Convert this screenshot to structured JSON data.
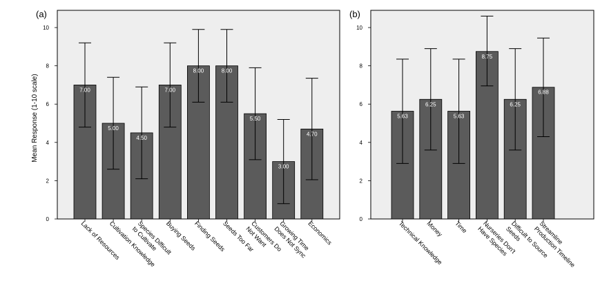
{
  "chart_data": [
    {
      "panel": "(a)",
      "type": "bar",
      "ylabel": "Mean Response (1-10 scale)",
      "ylim": [
        0,
        10.9
      ],
      "yticks": [
        0,
        2,
        4,
        6,
        8,
        10
      ],
      "grid": false,
      "bars": [
        {
          "label": "Lack of Resources",
          "value": 7.0,
          "label_text": "7.00",
          "err_low": 4.8,
          "err_high": 9.2
        },
        {
          "label": "Cultivation Knowledge",
          "value": 5.0,
          "label_text": "5.00",
          "err_low": 2.6,
          "err_high": 7.4
        },
        {
          "label": "Species Difficult\nto Cultivate",
          "value": 4.5,
          "label_text": "4.50",
          "err_low": 2.1,
          "err_high": 6.9
        },
        {
          "label": "Buying Seeds",
          "value": 7.0,
          "label_text": "7.00",
          "err_low": 4.8,
          "err_high": 9.2
        },
        {
          "label": "Finding Seeds",
          "value": 8.0,
          "label_text": "8.00",
          "err_low": 6.1,
          "err_high": 9.9
        },
        {
          "label": "Seeds Too Far",
          "value": 8.0,
          "label_text": "8.00",
          "err_low": 6.1,
          "err_high": 9.9
        },
        {
          "label": "Customers Do\nNot Want",
          "value": 5.5,
          "label_text": "5.50",
          "err_low": 3.1,
          "err_high": 7.9
        },
        {
          "label": "Growing Time\nDoes Not Sync",
          "value": 3.0,
          "label_text": "3.00",
          "err_low": 0.8,
          "err_high": 5.2
        },
        {
          "label": "Economics",
          "value": 4.7,
          "label_text": "4.70",
          "err_low": 2.05,
          "err_high": 7.35
        }
      ]
    },
    {
      "panel": "(b)",
      "type": "bar",
      "ylabel": "",
      "ylim": [
        0,
        10.9
      ],
      "yticks": [
        0,
        2,
        4,
        6,
        8,
        10
      ],
      "grid": false,
      "bars": [
        {
          "label": "Technical Knowledge",
          "value": 5.63,
          "label_text": "5.63",
          "err_low": 2.9,
          "err_high": 8.35
        },
        {
          "label": "Money",
          "value": 6.25,
          "label_text": "6.25",
          "err_low": 3.6,
          "err_high": 8.9
        },
        {
          "label": "Time",
          "value": 5.63,
          "label_text": "5.63",
          "err_low": 2.9,
          "err_high": 8.35
        },
        {
          "label": "Nurseries Don't\nHave Species",
          "value": 8.75,
          "label_text": "8.75",
          "err_low": 6.95,
          "err_high": 10.6
        },
        {
          "label": "Difficult to Source\nSeeds",
          "value": 6.25,
          "label_text": "6.25",
          "err_low": 3.6,
          "err_high": 8.9
        },
        {
          "label": "Streamline\nProduction Timeline",
          "value": 6.88,
          "label_text": "6.88",
          "err_low": 4.3,
          "err_high": 9.45
        }
      ]
    }
  ]
}
